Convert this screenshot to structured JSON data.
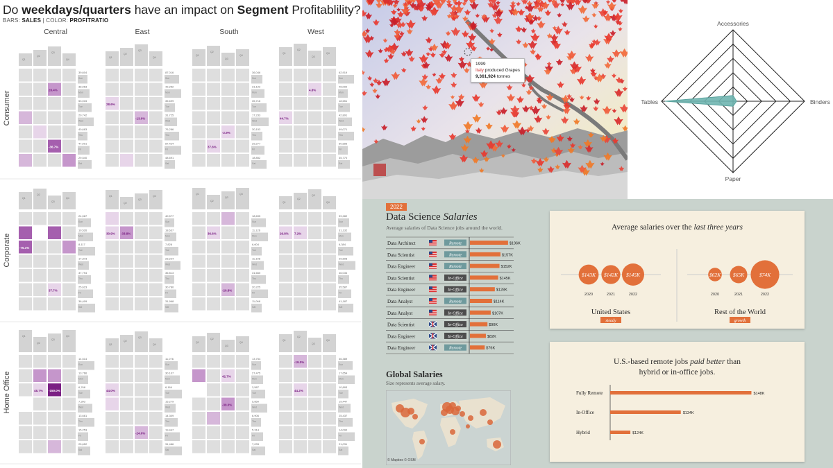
{
  "heatmap": {
    "title_pre": "Do ",
    "title_b1": "weekdays/quarters",
    "title_mid": " have an impact on ",
    "title_b2": "Segment",
    "title_post": " Profitablility?",
    "subtitle_pre": "BARS: ",
    "subtitle_b1": "SALES",
    "subtitle_mid": " | COLOR: ",
    "subtitle_b2": "PROFITRATIO",
    "columns": [
      "Central",
      "East",
      "South",
      "West"
    ],
    "rows": [
      "Consumer",
      "Corporate",
      "Home Office"
    ],
    "day_labels": [
      "Sun",
      "Mon",
      "Tue",
      "Wed",
      "Thu",
      "Fri",
      "Sat"
    ],
    "quarter_labels": [
      "Q1",
      "Q2",
      "Q3",
      "Q4"
    ],
    "colors": {
      "light": "#dedede",
      "p1": "#e7d5e9",
      "p2": "#d6b7da",
      "p3": "#c596cb",
      "p4": "#a55fae",
      "dark": "#7a1f83",
      "bar": "#d3d3d3"
    }
  },
  "chart_data": [
    {
      "type": "heatmap",
      "title": "Do weekdays/quarters have an impact on Segment Profitablility?",
      "facets": {
        "columns": [
          "Central",
          "East",
          "South",
          "West"
        ],
        "rows": [
          "Consumer",
          "Corporate",
          "Home Office"
        ]
      },
      "notes": "Each facet: 7 weekday rows x 4 quarter columns, colored by profit ratio; labeled extremes shown.",
      "cells": [
        {
          "r": 0,
          "c": 0,
          "txt": "28.4%",
          "lv": 3,
          "row": 1,
          "col": 2
        },
        {
          "r": 0,
          "c": 0,
          "lv": 2,
          "row": 3,
          "col": 0
        },
        {
          "r": 0,
          "c": 0,
          "txt": "-36.7%",
          "lv": 4,
          "row": 5,
          "col": 2
        },
        {
          "r": 0,
          "c": 0,
          "lv": 2,
          "row": 6,
          "col": 0
        },
        {
          "r": 0,
          "c": 0,
          "lv": 3,
          "row": 6,
          "col": 3
        },
        {
          "r": 0,
          "c": 0,
          "lv": 1,
          "row": 4,
          "col": 1
        },
        {
          "r": 0,
          "c": 1,
          "txt": "28.6%",
          "lv": 1,
          "row": 2,
          "col": 0
        },
        {
          "r": 0,
          "c": 1,
          "txt": "-13.0%",
          "lv": 2,
          "row": 3,
          "col": 2
        },
        {
          "r": 0,
          "c": 1,
          "lv": 1,
          "row": 6,
          "col": 1
        },
        {
          "r": 0,
          "c": 2,
          "txt": "-2.9%",
          "lv": 1,
          "row": 4,
          "col": 2
        },
        {
          "r": 0,
          "c": 2,
          "txt": "37.6%",
          "lv": 0,
          "row": 5,
          "col": 1
        },
        {
          "r": 0,
          "c": 3,
          "txt": "4.8%",
          "lv": 0,
          "row": 1,
          "col": 2
        },
        {
          "r": 0,
          "c": 3,
          "txt": "44.7%",
          "lv": 0,
          "row": 3,
          "col": 0
        },
        {
          "r": 1,
          "c": 0,
          "txt": "-75.1%",
          "lv": 4,
          "row": 2,
          "col": 0
        },
        {
          "r": 1,
          "c": 0,
          "lv": 4,
          "row": 1,
          "col": 0
        },
        {
          "r": 1,
          "c": 0,
          "lv": 4,
          "row": 1,
          "col": 2
        },
        {
          "r": 1,
          "c": 0,
          "lv": 3,
          "row": 2,
          "col": 3
        },
        {
          "r": 1,
          "c": 0,
          "txt": "37.7%",
          "lv": 0,
          "row": 5,
          "col": 2
        },
        {
          "r": 1,
          "c": 0,
          "lv": -1,
          "row": 1,
          "col": 1
        },
        {
          "r": 1,
          "c": 1,
          "txt": "30.9%",
          "lv": 1,
          "row": 1,
          "col": 0
        },
        {
          "r": 1,
          "c": 1,
          "txt": "-33.8%",
          "lv": 3,
          "row": 1,
          "col": 1
        },
        {
          "r": 1,
          "c": 1,
          "lv": 1,
          "row": 0,
          "col": 0
        },
        {
          "r": 1,
          "c": 2,
          "txt": "36.6%",
          "lv": 0,
          "row": 1,
          "col": 1
        },
        {
          "r": 1,
          "c": 2,
          "txt": "-20.8%",
          "lv": 2,
          "row": 5,
          "col": 2
        },
        {
          "r": 1,
          "c": 2,
          "lv": 2,
          "row": 0,
          "col": 2
        },
        {
          "r": 1,
          "c": 3,
          "txt": "29.8%",
          "lv": 0,
          "row": 1,
          "col": 0
        },
        {
          "r": 1,
          "c": 3,
          "txt": "7.2%",
          "lv": 0,
          "row": 1,
          "col": 1
        },
        {
          "r": 2,
          "c": 0,
          "txt": "48.7%",
          "lv": 1,
          "row": 2,
          "col": 1
        },
        {
          "r": 2,
          "c": 0,
          "txt": "-150.0%",
          "lv": 5,
          "row": 2,
          "col": 2
        },
        {
          "r": 2,
          "c": 0,
          "lv": 3,
          "row": 1,
          "col": 1
        },
        {
          "r": 2,
          "c": 0,
          "lv": 3,
          "row": 1,
          "col": 2
        },
        {
          "r": 2,
          "c": 0,
          "lv": 2,
          "row": 6,
          "col": 2
        },
        {
          "r": 2,
          "c": 0,
          "lv": -1,
          "row": 3,
          "col": 0
        },
        {
          "r": 2,
          "c": 1,
          "txt": "44.0%",
          "lv": 0,
          "row": 2,
          "col": 0
        },
        {
          "r": 2,
          "c": 1,
          "txt": "-24.0%",
          "lv": 2,
          "row": 5,
          "col": 2
        },
        {
          "r": 2,
          "c": 1,
          "lv": 1,
          "row": 3,
          "col": 0
        },
        {
          "r": 2,
          "c": 2,
          "txt": "42.7%",
          "lv": 1,
          "row": 1,
          "col": 2
        },
        {
          "r": 2,
          "c": 2,
          "txt": "-39.0%",
          "lv": 3,
          "row": 3,
          "col": 2
        },
        {
          "r": 2,
          "c": 2,
          "lv": 3,
          "row": 1,
          "col": 0
        },
        {
          "r": 2,
          "c": 2,
          "lv": 2,
          "row": 4,
          "col": 1
        },
        {
          "r": 2,
          "c": 2,
          "lv": -1,
          "row": 2,
          "col": 0
        },
        {
          "r": 2,
          "c": 3,
          "txt": "-19.0%",
          "lv": 2,
          "row": 0,
          "col": 1
        },
        {
          "r": 2,
          "c": 3,
          "txt": "44.2%",
          "lv": 0,
          "row": 2,
          "col": 1
        }
      ],
      "side_values": [
        [
          [
            "39,604",
            "38,063",
            "53,015",
            "29,742",
            "40,683",
            "47,091",
            "29,540"
          ],
          [
            "87,016",
            "42,252",
            "35,699",
            "31,725",
            "76,286",
            "87,424",
            "48,691"
          ],
          [
            "36,046",
            "31,122",
            "35,716",
            "17,233",
            "30,153",
            "29,277",
            "18,852"
          ],
          [
            "62,919",
            "46,092",
            "18,651",
            "42,891",
            "49,071",
            "60,656",
            "35,770"
          ]
        ],
        [
          [
            "24,087",
            "19,526",
            "8,117",
            "17,373",
            "37,794",
            "25,623",
            "36,409"
          ],
          [
            "40,577",
            "18,637",
            "7,828",
            "23,224",
            "36,813",
            "30,780",
            "31,968"
          ],
          [
            "18,695",
            "11,126",
            "6,604",
            "11,108",
            "31,660",
            "20,225",
            "11,068"
          ],
          [
            "39,282",
            "31,132",
            "6,384",
            "29,608",
            "46,034",
            "35,587",
            "41,187"
          ]
        ],
        [
          [
            "14,514",
            "13,766",
            "6,768",
            "7,393",
            "13,661",
            "15,253",
            "25,652"
          ],
          [
            "11,076",
            "30,107",
            "6,164",
            "15,279",
            "14,309",
            "19,447",
            "31,486"
          ],
          [
            "13,754",
            "27,475",
            "3,587",
            "5,850",
            "6,906",
            "5,314",
            "7,033"
          ],
          [
            "36,389",
            "17,654",
            "10,893",
            "19,447",
            "25,437",
            "14,090",
            "21,031"
          ]
        ]
      ]
    },
    {
      "type": "line",
      "title": "Leaf tooltip",
      "tooltip": {
        "year": "1999",
        "country": "Italy",
        "verb": "produced",
        "crop": "Grapes",
        "amount": "9,361,924",
        "unit": "tonnes"
      }
    },
    {
      "type": "radar",
      "axes": [
        "Accessories",
        "Binders",
        "Paper",
        "Tables"
      ],
      "values": [
        0.08,
        0.05,
        0.07,
        0.95
      ],
      "rings": 5
    },
    {
      "type": "bar",
      "title": "Data Science Salaries",
      "badge": "2022",
      "subtitle": "Average salaries of Data Science jobs around the world.",
      "rows": [
        {
          "role": "Data Architect",
          "flag": "us",
          "mode": "Remote",
          "value": 196,
          "label": "$196K"
        },
        {
          "role": "Data Scientist",
          "flag": "us",
          "mode": "Remote",
          "value": 157,
          "label": "$157K"
        },
        {
          "role": "Data Engineer",
          "flag": "us",
          "mode": "Remote",
          "value": 152,
          "label": "$152K"
        },
        {
          "role": "Data Scientist",
          "flag": "us",
          "mode": "In-Office",
          "value": 145,
          "label": "$145K"
        },
        {
          "role": "Data Engineer",
          "flag": "us",
          "mode": "In-Office",
          "value": 128,
          "label": "$128K"
        },
        {
          "role": "Data Analyst",
          "flag": "us",
          "mode": "Remote",
          "value": 114,
          "label": "$114K"
        },
        {
          "role": "Data Analyst",
          "flag": "us",
          "mode": "In-Office",
          "value": 107,
          "label": "$107K"
        },
        {
          "role": "Data Scientist",
          "flag": "uk",
          "mode": "In-Office",
          "value": 90,
          "label": "$90K"
        },
        {
          "role": "Data Engineer",
          "flag": "uk",
          "mode": "In-Office",
          "value": 82,
          "label": "$82K"
        },
        {
          "role": "Data Engineer",
          "flag": "uk",
          "mode": "Remote",
          "value": 76,
          "label": "$76K"
        }
      ]
    },
    {
      "type": "scatter",
      "title": "Average salaries over the last three years",
      "groups": [
        {
          "name": "United States",
          "tag": "steady",
          "years": [
            "2020",
            "2021",
            "2022"
          ],
          "values": [
            143,
            142,
            145
          ],
          "labels": [
            "$143K",
            "$142K",
            "$145K"
          ]
        },
        {
          "name": "Rest of the World",
          "tag": "growth",
          "years": [
            "2020",
            "2021",
            "2022"
          ],
          "values": [
            62,
            65,
            74
          ],
          "labels": [
            "$62K",
            "$65K",
            "$74K"
          ]
        }
      ]
    },
    {
      "type": "bar",
      "title": "U.S.-based remote jobs paid better than hybrid or in-office jobs.",
      "categories": [
        "Fully Remote",
        "In-Office",
        "Hybrid"
      ],
      "values": [
        148,
        134,
        124
      ],
      "labels": [
        "$148K",
        "$134K",
        "$124K"
      ],
      "xlim": [
        120,
        150
      ]
    }
  ],
  "salary": {
    "title_a": "Data Science ",
    "title_b": "Salaries",
    "map_title": "Global Salaries",
    "map_sub": "Size represents average salary.",
    "map_credit": "© Mapbox  © OSM",
    "card1_pre": "Average salaries over the ",
    "card1_it": "last three years",
    "card2_l1_pre": "U.S.-based remote jobs ",
    "card2_l1_it": "paid better",
    "card2_l1_post": " than",
    "card2_l2": "hybrid or in-office jobs.",
    "accent": "#e2703a"
  }
}
